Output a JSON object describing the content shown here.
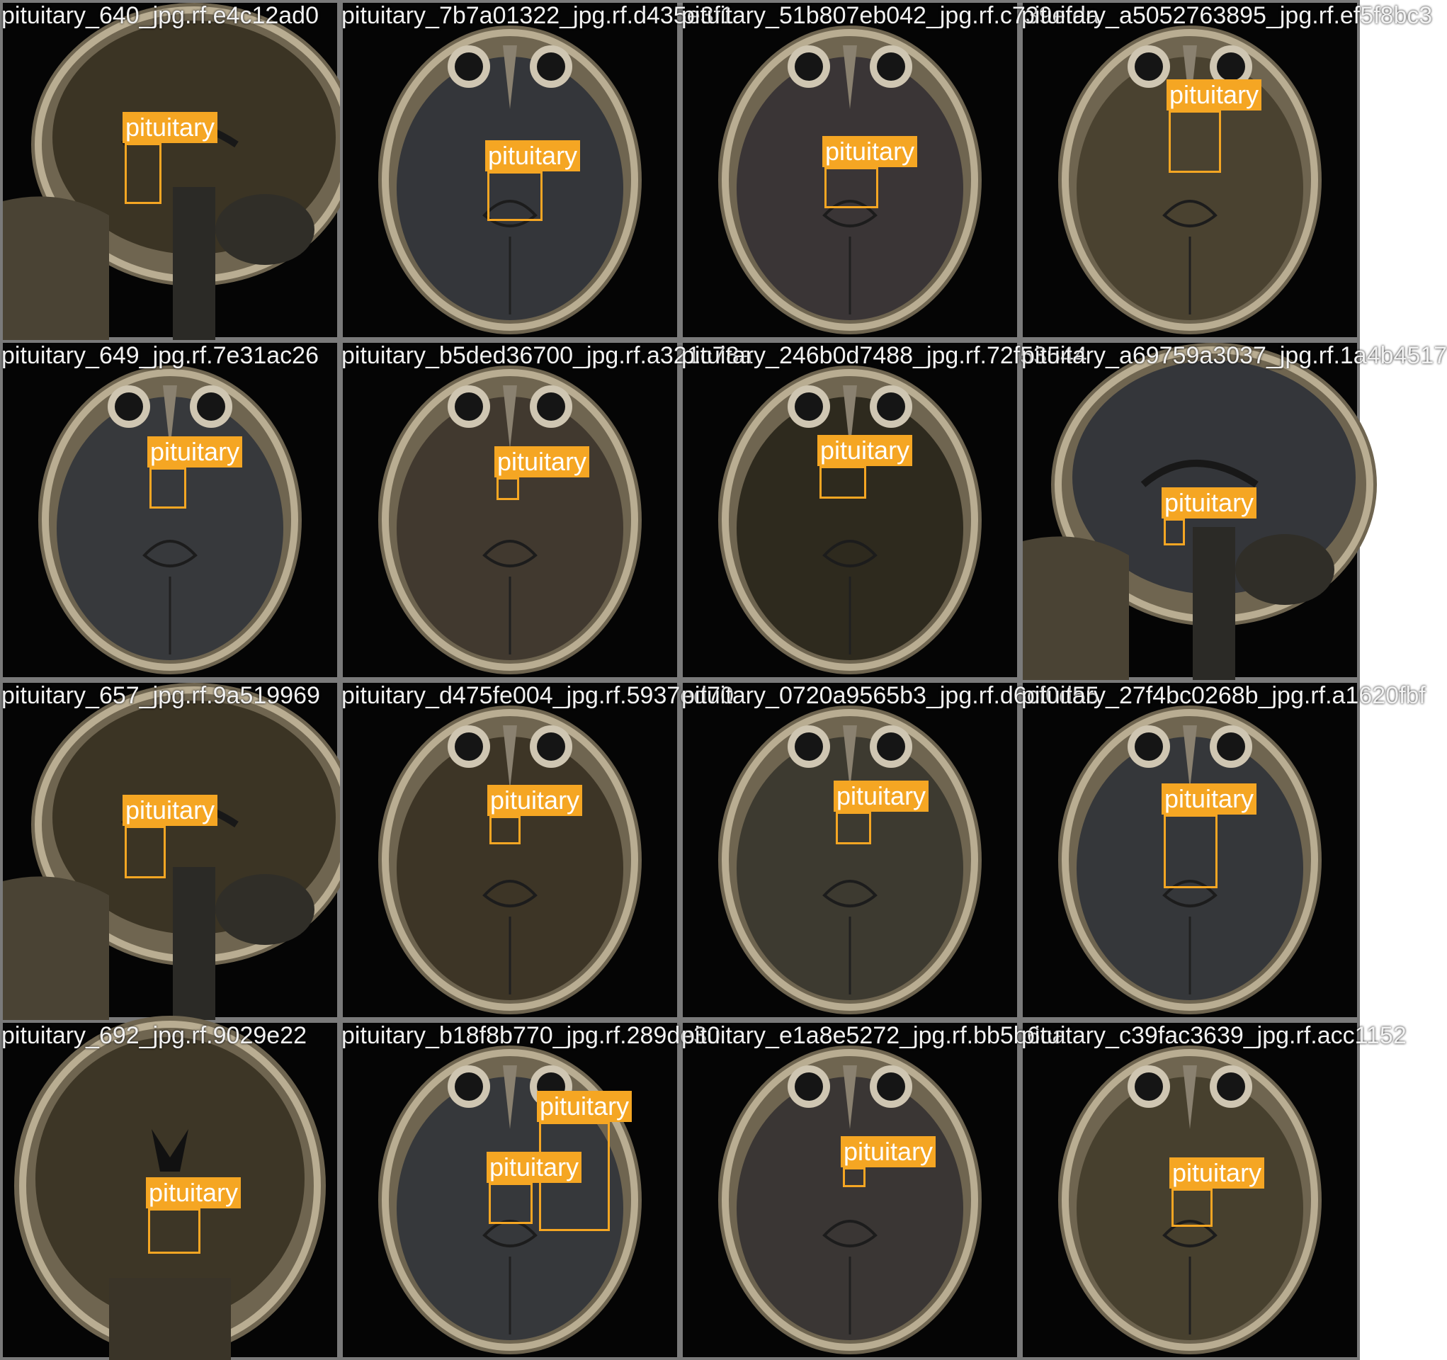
{
  "tiles": [
    {
      "filename": "pituitary_640_jpg.rf.e4c12ad0",
      "view": "sagittal",
      "tone": "#3b3424",
      "boxes": [
        {
          "label": "pituitary"
        }
      ]
    },
    {
      "filename": "pituitary_7b7a01322_jpg.rf.d435e3f1",
      "view": "axial",
      "tone": "#34363a",
      "boxes": [
        {
          "label": "pituitary"
        }
      ]
    },
    {
      "filename": "pituitary_51b807eb042_jpg.rf.c739efda",
      "view": "axial",
      "tone": "#3a3536",
      "boxes": [
        {
          "label": "pituitary"
        }
      ]
    },
    {
      "filename": "pituitary_a5052763895_jpg.rf.ef5f8bc3",
      "view": "axial",
      "tone": "#4a4230",
      "boxes": [
        {
          "label": "pituitary"
        }
      ]
    },
    {
      "filename": "pituitary_649_jpg.rf.7e31ac26",
      "view": "axial",
      "tone": "#37393c",
      "boxes": [
        {
          "label": "pituitary"
        }
      ]
    },
    {
      "filename": "pituitary_b5ded36700_jpg.rf.a321c78a",
      "view": "axial",
      "tone": "#41392f",
      "boxes": [
        {
          "label": "pituitary"
        }
      ]
    },
    {
      "filename": "pituitary_246b0d7488_jpg.rf.72f53544",
      "view": "axial",
      "tone": "#2e2a1e",
      "boxes": [
        {
          "label": "pituitary"
        }
      ]
    },
    {
      "filename": "pituitary_a69759a3037_jpg.rf.1a4b4517",
      "view": "sagittal",
      "tone": "#34363a",
      "boxes": [
        {
          "label": "pituitary"
        }
      ]
    },
    {
      "filename": "pituitary_657_jpg.rf.9a519969",
      "view": "sagittal",
      "tone": "#3b3424",
      "boxes": [
        {
          "label": "pituitary"
        }
      ]
    },
    {
      "filename": "pituitary_d475fe004_jpg.rf.5937ed70",
      "view": "axial",
      "tone": "#3d3526",
      "boxes": [
        {
          "label": "pituitary"
        }
      ]
    },
    {
      "filename": "pituitary_0720a9565b3_jpg.rf.d6cf0d55",
      "view": "axial",
      "tone": "#3d3a30",
      "boxes": [
        {
          "label": "pituitary"
        }
      ]
    },
    {
      "filename": "pituitary_27f4bc0268b_jpg.rf.a1620fbf",
      "view": "axial",
      "tone": "#35373a",
      "boxes": [
        {
          "label": "pituitary"
        }
      ]
    },
    {
      "filename": "pituitary_692_jpg.rf.9029e22",
      "view": "coronal",
      "tone": "#3d3626",
      "boxes": [
        {
          "label": "pituitary"
        }
      ]
    },
    {
      "filename": "pituitary_b18f8b770_jpg.rf.289de30",
      "view": "axial",
      "tone": "#36383b",
      "boxes": [
        {
          "label": "pituitary"
        },
        {
          "label": "pituitary"
        }
      ]
    },
    {
      "filename": "pituitary_e1a8e5272_jpg.rf.bb5b6ca",
      "view": "axial",
      "tone": "#3a3634",
      "boxes": [
        {
          "label": "pituitary"
        }
      ]
    },
    {
      "filename": "pituitary_c39fac3639_jpg.rf.acc1152",
      "view": "axial",
      "tone": "#47402e",
      "boxes": [
        {
          "label": "pituitary"
        }
      ]
    }
  ]
}
